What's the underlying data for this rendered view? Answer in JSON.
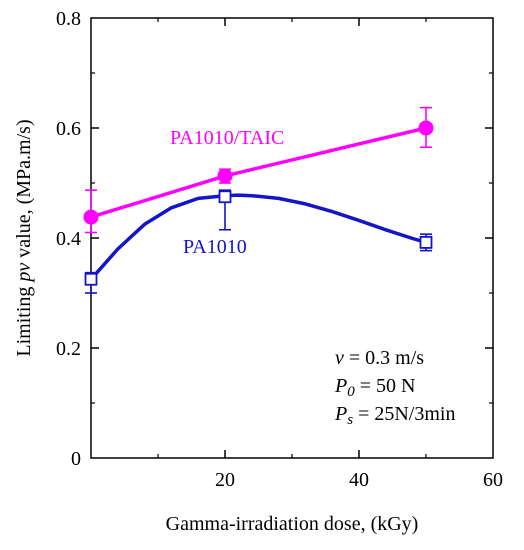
{
  "chart_data": {
    "type": "line",
    "xlabel": "Gamma-irradiation dose, (kGy)",
    "ylabel_prefix": "Limiting ",
    "ylabel_italic": "pv",
    "ylabel_suffix": " value, (MPa.m/s)",
    "xlim": [
      0,
      60
    ],
    "ylim": [
      0,
      0.8
    ],
    "x_ticks": [
      {
        "value": 20,
        "label": "20"
      },
      {
        "value": 40,
        "label": "40"
      },
      {
        "value": 60,
        "label": "60"
      }
    ],
    "y_ticks": [
      {
        "value": 0,
        "label": "0"
      },
      {
        "value": 0.2,
        "label": "0.2"
      },
      {
        "value": 0.4,
        "label": "0.4"
      },
      {
        "value": 0.6,
        "label": "0.6"
      },
      {
        "value": 0.8,
        "label": "0.8"
      }
    ],
    "grid": false,
    "series": [
      {
        "name": "PA1010/TAIC",
        "color": "#ff00ff",
        "marker": "filled-circle",
        "x": [
          0,
          20,
          50
        ],
        "y": [
          0.438,
          0.513,
          0.6
        ],
        "err_low": [
          0.41,
          0.5,
          0.565
        ],
        "err_high": [
          0.487,
          0.525,
          0.637
        ],
        "curve_y": [
          0.438,
          0.513,
          0.6
        ]
      },
      {
        "name": "PA1010",
        "color": "#1414c8",
        "marker": "open-square",
        "x": [
          0,
          20,
          50
        ],
        "y": [
          0.325,
          0.475,
          0.392
        ],
        "err_low": [
          0.3,
          0.415,
          0.377
        ],
        "err_high": [
          0.337,
          0.487,
          0.407
        ],
        "curve_x": [
          0,
          4,
          8,
          12,
          16,
          20,
          22,
          24,
          28,
          32,
          36,
          40,
          44,
          48,
          50
        ],
        "curve_y": [
          0.325,
          0.38,
          0.425,
          0.455,
          0.472,
          0.477,
          0.478,
          0.477,
          0.472,
          0.462,
          0.448,
          0.432,
          0.415,
          0.399,
          0.392
        ]
      }
    ],
    "conditions": {
      "line1_var": "v",
      "line1_rest": " = 0.3 m/s",
      "line2_var": "P",
      "line2_sub": "0",
      "line2_rest": " = 50 N",
      "line3_var": "P",
      "line3_sub": "s",
      "line3_rest": " = 25N/3min"
    }
  }
}
